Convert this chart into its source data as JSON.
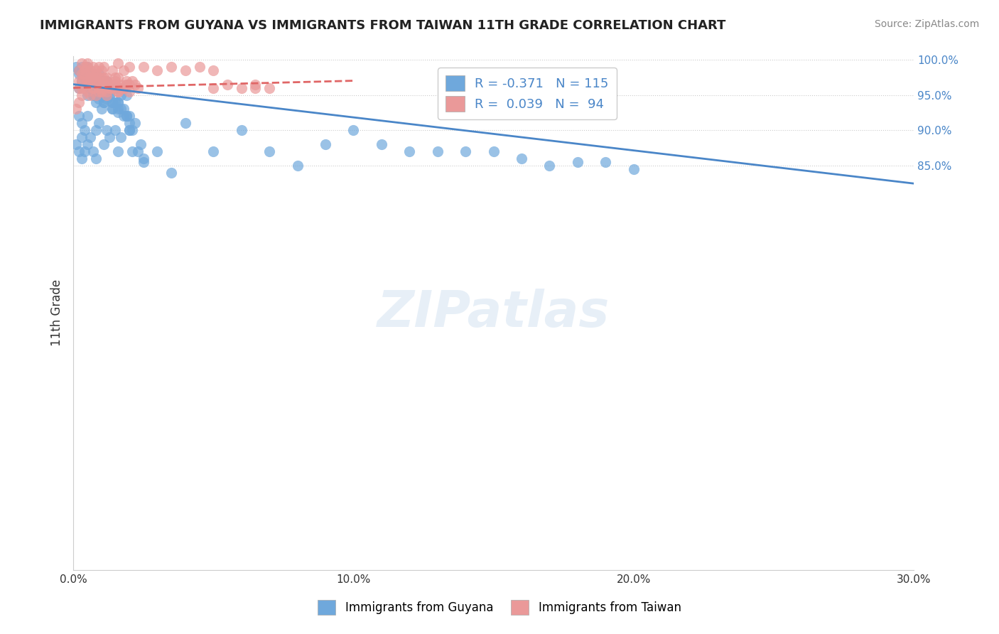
{
  "title": "IMMIGRANTS FROM GUYANA VS IMMIGRANTS FROM TAIWAN 11TH GRADE CORRELATION CHART",
  "source": "Source: ZipAtlas.com",
  "xlabel_bottom": "",
  "ylabel": "11th Grade",
  "right_ylabel": "",
  "xlim": [
    0.0,
    0.3
  ],
  "ylim": [
    0.28,
    1.005
  ],
  "xtick_labels": [
    "0.0%",
    "10.0%",
    "20.0%",
    "30.0%"
  ],
  "xtick_vals": [
    0.0,
    0.1,
    0.2,
    0.3
  ],
  "ytick_right_labels": [
    "85.0%",
    "90.0%",
    "95.0%",
    "100.0%"
  ],
  "ytick_right_vals": [
    0.85,
    0.9,
    0.95,
    1.0
  ],
  "blue_color": "#6fa8dc",
  "pink_color": "#ea9999",
  "blue_line_color": "#4a86c8",
  "pink_line_color": "#e06666",
  "legend_R_blue": "R = -0.371",
  "legend_N_blue": "N = 115",
  "legend_R_pink": "R =  0.039",
  "legend_N_pink": "N =  94",
  "watermark": "ZIPatlas",
  "background_color": "#ffffff",
  "grid_color": "#cccccc",
  "legend_text_color": "#4a86c8",
  "blue_scatter_x": [
    0.001,
    0.002,
    0.002,
    0.003,
    0.003,
    0.003,
    0.004,
    0.004,
    0.005,
    0.005,
    0.005,
    0.006,
    0.006,
    0.007,
    0.007,
    0.008,
    0.008,
    0.008,
    0.009,
    0.009,
    0.01,
    0.01,
    0.011,
    0.011,
    0.012,
    0.012,
    0.013,
    0.013,
    0.014,
    0.015,
    0.015,
    0.016,
    0.016,
    0.017,
    0.018,
    0.019,
    0.02,
    0.021,
    0.022,
    0.023,
    0.002,
    0.003,
    0.004,
    0.005,
    0.006,
    0.007,
    0.008,
    0.009,
    0.01,
    0.011,
    0.012,
    0.013,
    0.014,
    0.015,
    0.016,
    0.017,
    0.018,
    0.019,
    0.02,
    0.021,
    0.002,
    0.004,
    0.006,
    0.008,
    0.01,
    0.012,
    0.014,
    0.016,
    0.018,
    0.02,
    0.003,
    0.005,
    0.007,
    0.009,
    0.011,
    0.013,
    0.015,
    0.017,
    0.019,
    0.024,
    0.025,
    0.03,
    0.035,
    0.04,
    0.05,
    0.06,
    0.07,
    0.08,
    0.09,
    0.1,
    0.11,
    0.12,
    0.13,
    0.14,
    0.15,
    0.16,
    0.17,
    0.18,
    0.19,
    0.2,
    0.001,
    0.002,
    0.003,
    0.004,
    0.005,
    0.006,
    0.007,
    0.008,
    0.009,
    0.01,
    0.012,
    0.014,
    0.016,
    0.02,
    0.025
  ],
  "blue_scatter_y": [
    0.88,
    0.87,
    0.92,
    0.89,
    0.86,
    0.91,
    0.9,
    0.87,
    0.95,
    0.88,
    0.92,
    0.96,
    0.89,
    0.95,
    0.87,
    0.94,
    0.9,
    0.86,
    0.96,
    0.91,
    0.96,
    0.93,
    0.94,
    0.88,
    0.97,
    0.9,
    0.95,
    0.89,
    0.93,
    0.96,
    0.9,
    0.94,
    0.87,
    0.89,
    0.96,
    0.92,
    0.9,
    0.87,
    0.91,
    0.87,
    0.96,
    0.97,
    0.96,
    0.97,
    0.96,
    0.96,
    0.95,
    0.95,
    0.97,
    0.94,
    0.95,
    0.95,
    0.94,
    0.94,
    0.93,
    0.93,
    0.92,
    0.92,
    0.91,
    0.9,
    0.98,
    0.98,
    0.97,
    0.97,
    0.96,
    0.95,
    0.94,
    0.94,
    0.93,
    0.92,
    0.99,
    0.99,
    0.98,
    0.98,
    0.97,
    0.96,
    0.96,
    0.95,
    0.95,
    0.88,
    0.86,
    0.87,
    0.84,
    0.91,
    0.87,
    0.9,
    0.87,
    0.85,
    0.88,
    0.9,
    0.88,
    0.87,
    0.87,
    0.87,
    0.87,
    0.86,
    0.85,
    0.855,
    0.855,
    0.845,
    0.99,
    0.985,
    0.98,
    0.975,
    0.965,
    0.96,
    0.96,
    0.95,
    0.945,
    0.95,
    0.945,
    0.93,
    0.925,
    0.9,
    0.855
  ],
  "pink_scatter_x": [
    0.001,
    0.002,
    0.002,
    0.003,
    0.003,
    0.004,
    0.004,
    0.005,
    0.005,
    0.006,
    0.006,
    0.007,
    0.007,
    0.008,
    0.008,
    0.009,
    0.01,
    0.01,
    0.011,
    0.012,
    0.012,
    0.013,
    0.014,
    0.015,
    0.016,
    0.017,
    0.018,
    0.019,
    0.02,
    0.021,
    0.002,
    0.003,
    0.004,
    0.005,
    0.006,
    0.007,
    0.008,
    0.009,
    0.01,
    0.011,
    0.012,
    0.013,
    0.014,
    0.015,
    0.016,
    0.017,
    0.018,
    0.019,
    0.02,
    0.022,
    0.003,
    0.005,
    0.007,
    0.009,
    0.011,
    0.013,
    0.015,
    0.017,
    0.019,
    0.023,
    0.004,
    0.006,
    0.008,
    0.01,
    0.012,
    0.014,
    0.016,
    0.018,
    0.05,
    0.055,
    0.06,
    0.065,
    0.07,
    0.002,
    0.003,
    0.004,
    0.005,
    0.006,
    0.007,
    0.008,
    0.009,
    0.01,
    0.011,
    0.014,
    0.016,
    0.018,
    0.02,
    0.025,
    0.03,
    0.035,
    0.04,
    0.045,
    0.05,
    0.065
  ],
  "pink_scatter_y": [
    0.93,
    0.96,
    0.94,
    0.97,
    0.95,
    0.98,
    0.96,
    0.99,
    0.97,
    0.975,
    0.95,
    0.98,
    0.96,
    0.975,
    0.95,
    0.97,
    0.975,
    0.955,
    0.965,
    0.97,
    0.95,
    0.965,
    0.96,
    0.97,
    0.955,
    0.965,
    0.96,
    0.97,
    0.965,
    0.97,
    0.97,
    0.96,
    0.975,
    0.955,
    0.97,
    0.96,
    0.97,
    0.955,
    0.96,
    0.96,
    0.955,
    0.96,
    0.96,
    0.965,
    0.955,
    0.96,
    0.96,
    0.965,
    0.955,
    0.965,
    0.98,
    0.965,
    0.975,
    0.96,
    0.975,
    0.96,
    0.975,
    0.96,
    0.965,
    0.96,
    0.99,
    0.975,
    0.98,
    0.965,
    0.975,
    0.965,
    0.975,
    0.96,
    0.96,
    0.965,
    0.96,
    0.965,
    0.96,
    0.985,
    0.995,
    0.985,
    0.995,
    0.985,
    0.99,
    0.985,
    0.99,
    0.985,
    0.99,
    0.985,
    0.995,
    0.985,
    0.99,
    0.99,
    0.985,
    0.99,
    0.985,
    0.99,
    0.985,
    0.96
  ],
  "blue_trend_x": [
    0.0,
    0.3
  ],
  "blue_trend_y": [
    0.965,
    0.825
  ],
  "pink_trend_x": [
    0.0,
    0.1
  ],
  "pink_trend_y": [
    0.96,
    0.97
  ]
}
